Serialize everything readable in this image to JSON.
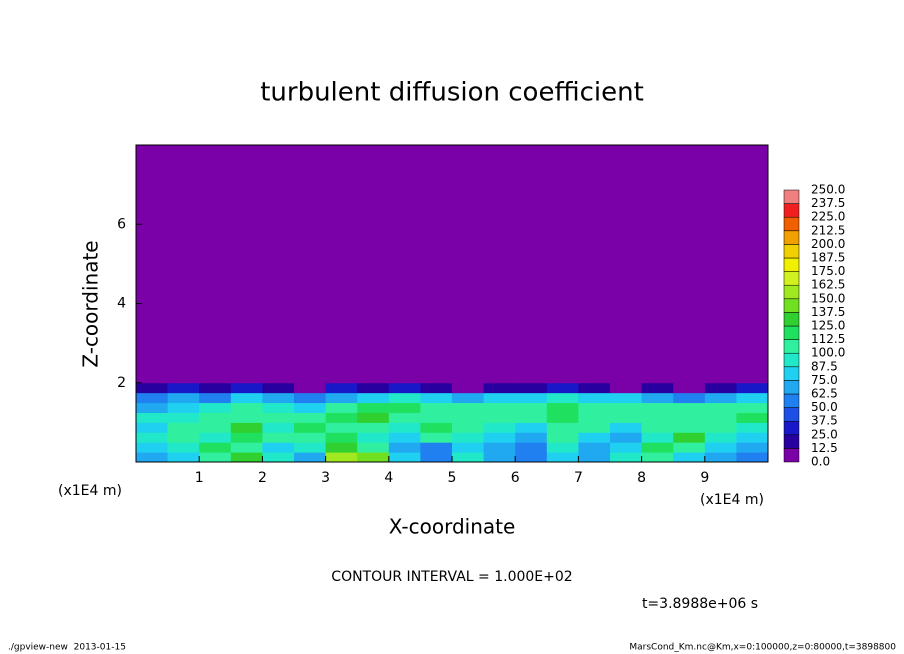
{
  "chart_data": {
    "type": "heatmap",
    "title": "turbulent diffusion coefficient",
    "x_label": "X-coordinate",
    "y_label": "Z-coordinate",
    "x_unit": "(x1E4 m)",
    "y_unit": "(x1E4 m)",
    "xlim": [
      0,
      10
    ],
    "ylim": [
      0,
      8
    ],
    "xticks": [
      1,
      2,
      3,
      4,
      5,
      6,
      7,
      8,
      9
    ],
    "yticks": [
      2,
      4,
      6
    ],
    "x_edges": [
      0,
      0.5,
      1,
      1.5,
      2,
      2.5,
      3,
      3.5,
      4,
      4.5,
      5,
      5.5,
      6,
      6.5,
      7,
      7.5,
      8,
      8.5,
      9,
      9.5,
      10
    ],
    "z_edges": [
      0,
      0.25,
      0.5,
      0.75,
      1,
      1.25,
      1.5,
      1.75,
      2,
      8
    ],
    "values": [
      [
        70,
        80,
        110,
        130,
        90,
        70,
        150,
        140,
        80,
        60,
        90,
        70,
        60,
        80,
        70,
        90,
        110,
        80,
        70,
        60
      ],
      [
        80,
        90,
        120,
        110,
        80,
        90,
        130,
        100,
        70,
        60,
        80,
        70,
        60,
        90,
        70,
        80,
        120,
        110,
        80,
        70
      ],
      [
        90,
        100,
        90,
        120,
        100,
        110,
        120,
        90,
        80,
        110,
        90,
        80,
        70,
        100,
        80,
        70,
        90,
        130,
        90,
        80
      ],
      [
        80,
        110,
        100,
        130,
        90,
        120,
        100,
        110,
        90,
        120,
        100,
        90,
        80,
        110,
        100,
        80,
        100,
        110,
        100,
        90
      ],
      [
        90,
        90,
        110,
        100,
        110,
        100,
        120,
        130,
        110,
        100,
        110,
        110,
        100,
        120,
        110,
        100,
        110,
        100,
        110,
        120
      ],
      [
        70,
        80,
        90,
        100,
        90,
        80,
        110,
        120,
        120,
        110,
        100,
        110,
        100,
        120,
        110,
        110,
        100,
        100,
        110,
        100
      ],
      [
        60,
        70,
        60,
        80,
        70,
        60,
        70,
        80,
        90,
        80,
        70,
        80,
        80,
        90,
        80,
        80,
        70,
        60,
        70,
        80
      ],
      [
        20,
        30,
        20,
        30,
        20,
        10,
        30,
        20,
        30,
        20,
        10,
        20,
        20,
        30,
        20,
        10,
        20,
        10,
        20,
        30
      ],
      [
        0,
        0,
        0,
        0,
        0,
        0,
        0,
        0,
        0,
        0,
        0,
        0,
        0,
        0,
        0,
        0,
        0,
        0,
        0,
        0
      ]
    ],
    "levels": [
      {
        "value": 0,
        "label": "0.0"
      },
      {
        "value": 12.5,
        "label": "12.5"
      },
      {
        "value": 25,
        "label": "25.0"
      },
      {
        "value": 37.5,
        "label": "37.5"
      },
      {
        "value": 50,
        "label": "50.0"
      },
      {
        "value": 62.5,
        "label": "62.5"
      },
      {
        "value": 75,
        "label": "75.0"
      },
      {
        "value": 87.5,
        "label": "87.5"
      },
      {
        "value": 100,
        "label": "100.0"
      },
      {
        "value": 112.5,
        "label": "112.5"
      },
      {
        "value": 125,
        "label": "125.0"
      },
      {
        "value": 137.5,
        "label": "137.5"
      },
      {
        "value": 150,
        "label": "150.0"
      },
      {
        "value": 162.5,
        "label": "162.5"
      },
      {
        "value": 175,
        "label": "175.0"
      },
      {
        "value": 187.5,
        "label": "187.5"
      },
      {
        "value": 200,
        "label": "200.0"
      },
      {
        "value": 212.5,
        "label": "212.5"
      },
      {
        "value": 225,
        "label": "225.0"
      },
      {
        "value": 237.5,
        "label": "237.5"
      },
      {
        "value": 250,
        "label": "250.0"
      }
    ],
    "colors": [
      "#7a00a8",
      "#2800a0",
      "#1818c8",
      "#1e50e6",
      "#2080f0",
      "#20a8f0",
      "#20d0f0",
      "#20e8c8",
      "#30f0a0",
      "#20e060",
      "#30d030",
      "#70e020",
      "#a0e820",
      "#d0f020",
      "#f0f000",
      "#f0d000",
      "#f0a000",
      "#f06000",
      "#f02020",
      "#f08080"
    ],
    "annotation": "CONTOUR INTERVAL = 1.000E+02",
    "time_label": "t=3.8988e+06 s",
    "footer_left": "./gpview-new  2013-01-15",
    "footer_right": "MarsCond_Km.nc@Km,x=0:100000,z=0:80000,t=3898800"
  }
}
